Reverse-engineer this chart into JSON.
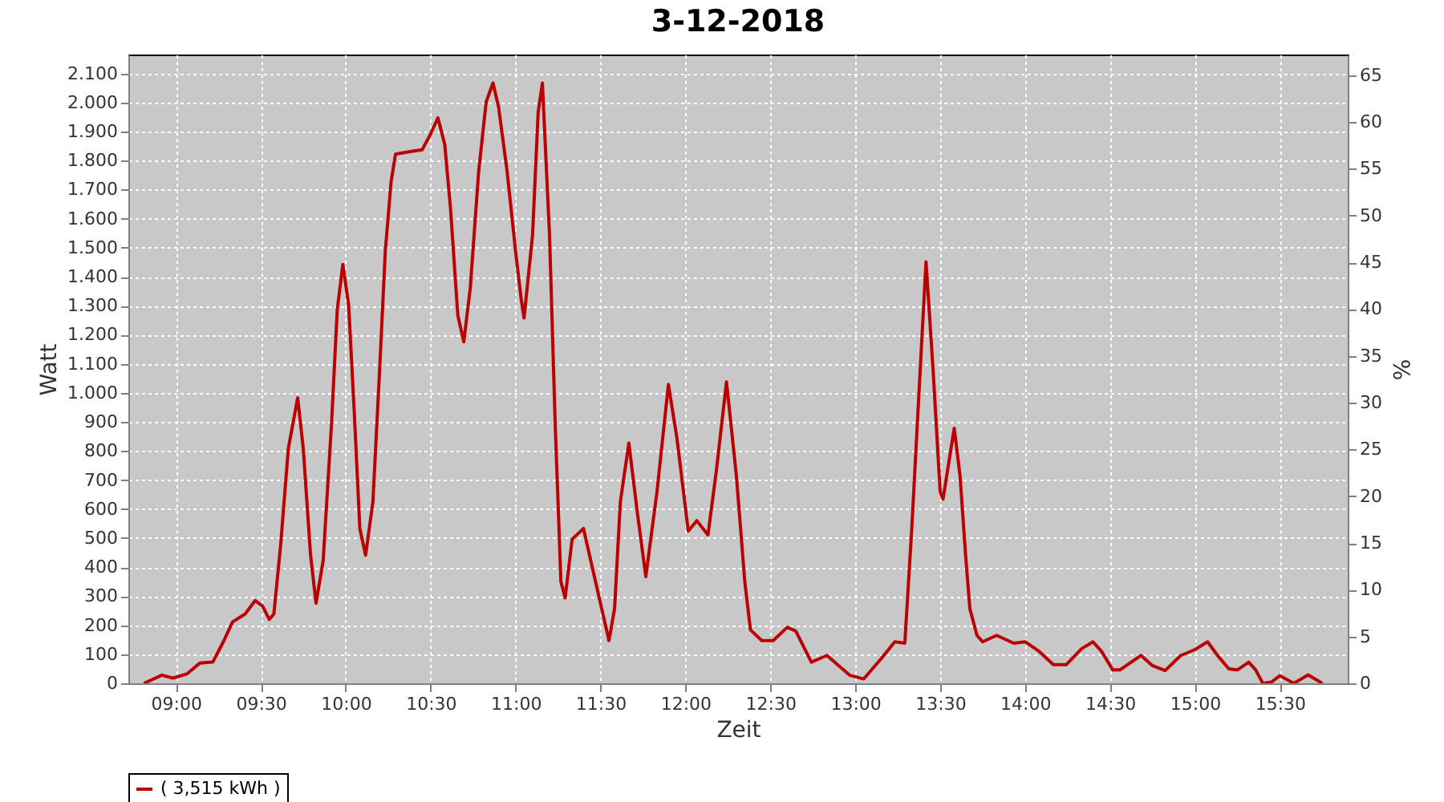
{
  "chart_data": {
    "type": "line",
    "title": "3-12-2018",
    "xlabel": "Zeit",
    "ylabel": "Watt",
    "y2label": "%",
    "xlim": [
      8.72,
      15.9
    ],
    "xticks": [
      {
        "value": 9,
        "label": "09:00"
      },
      {
        "value": 9.5,
        "label": "09:30"
      },
      {
        "value": 10,
        "label": "10:00"
      },
      {
        "value": 10.5,
        "label": "10:30"
      },
      {
        "value": 11,
        "label": "11:00"
      },
      {
        "value": 11.5,
        "label": "11:30"
      },
      {
        "value": 12,
        "label": "12:00"
      },
      {
        "value": 12.5,
        "label": "12:30"
      },
      {
        "value": 13,
        "label": "13:00"
      },
      {
        "value": 13.5,
        "label": "13:30"
      },
      {
        "value": 14,
        "label": "14:00"
      },
      {
        "value": 14.5,
        "label": "14:30"
      },
      {
        "value": 15,
        "label": "15:00"
      },
      {
        "value": 15.5,
        "label": "15:30"
      }
    ],
    "ylim": [
      0,
      2165
    ],
    "yticks": [
      0,
      100,
      200,
      300,
      400,
      500,
      600,
      700,
      800,
      900,
      {
        "value": 1000,
        "label": "1.000"
      },
      {
        "value": 1100,
        "label": "1.100"
      },
      {
        "value": 1200,
        "label": "1.200"
      },
      {
        "value": 1300,
        "label": "1.300"
      },
      {
        "value": 1400,
        "label": "1.400"
      },
      {
        "value": 1500,
        "label": "1.500"
      },
      {
        "value": 1600,
        "label": "1.600"
      },
      {
        "value": 1700,
        "label": "1.700"
      },
      {
        "value": 1800,
        "label": "1.800"
      },
      {
        "value": 1900,
        "label": "1.900"
      },
      {
        "value": 2000,
        "label": "2.000"
      },
      {
        "value": 2100,
        "label": "2.100"
      }
    ],
    "y2lim": [
      0,
      67.2
    ],
    "y2ticks": [
      0,
      5,
      10,
      15,
      20,
      25,
      30,
      35,
      40,
      45,
      50,
      55,
      60,
      65
    ],
    "grid": true,
    "legend": "bottom",
    "series": [
      {
        "name": "( 3,515 kWh )",
        "color": "#bb0000",
        "x": [
          8.812,
          8.917,
          8.983,
          9.067,
          9.142,
          9.217,
          9.283,
          9.333,
          9.408,
          9.467,
          9.51,
          9.55,
          9.577,
          9.617,
          9.662,
          9.717,
          9.75,
          9.793,
          9.825,
          9.867,
          9.917,
          9.95,
          9.983,
          10.017,
          10.05,
          10.083,
          10.117,
          10.16,
          10.2,
          10.233,
          10.267,
          10.293,
          10.35,
          10.45,
          10.5,
          10.543,
          10.583,
          10.617,
          10.66,
          10.695,
          10.733,
          10.783,
          10.827,
          10.867,
          10.9,
          10.95,
          11.0,
          11.033,
          11.05,
          11.1,
          11.133,
          11.158,
          11.2,
          11.233,
          11.267,
          11.292,
          11.333,
          11.4,
          11.45,
          11.55,
          11.583,
          11.617,
          11.667,
          11.717,
          11.767,
          11.833,
          11.9,
          11.95,
          12.017,
          12.067,
          12.133,
          12.183,
          12.242,
          12.3,
          12.35,
          12.383,
          12.45,
          12.517,
          12.6,
          12.65,
          12.742,
          12.833,
          12.967,
          13.05,
          13.15,
          13.233,
          13.292,
          13.333,
          13.383,
          13.417,
          13.458,
          13.5,
          13.517,
          13.583,
          13.617,
          13.65,
          13.675,
          13.717,
          13.75,
          13.833,
          13.933,
          14.0,
          14.083,
          14.167,
          14.242,
          14.333,
          14.4,
          14.45,
          14.517,
          14.558,
          14.683,
          14.75,
          14.825,
          14.917,
          15.0,
          15.075,
          15.133,
          15.2,
          15.25,
          15.317,
          15.358,
          15.4,
          15.45,
          15.5,
          15.583,
          15.667,
          15.75
        ],
        "values": [
          0,
          28,
          18,
          33,
          70,
          73,
          147,
          211,
          239,
          285,
          266,
          220,
          239,
          478,
          808,
          983,
          808,
          441,
          276,
          422,
          900,
          1286,
          1442,
          1304,
          937,
          533,
          441,
          625,
          1084,
          1488,
          1727,
          1822,
          1828,
          1837,
          1892,
          1947,
          1855,
          1635,
          1267,
          1176,
          1359,
          1764,
          2002,
          2067,
          1984,
          1764,
          1488,
          1323,
          1258,
          1543,
          1966,
          2067,
          1543,
          900,
          350,
          294,
          496,
          533,
          404,
          147,
          257,
          625,
          827,
          588,
          367,
          661,
          1029,
          845,
          524,
          560,
          511,
          735,
          1038,
          716,
          349,
          184,
          147,
          147,
          193,
          180,
          73,
          96,
          28,
          15,
          83,
          143,
          138,
          533,
          1084,
          1451,
          1084,
          661,
          634,
          878,
          716,
          441,
          257,
          165,
          143,
          165,
          138,
          143,
          110,
          64,
          64,
          119,
          143,
          110,
          46,
          46,
          96,
          61,
          44,
          96,
          116,
          143,
          96,
          50,
          46,
          73,
          46,
          0,
          4,
          26,
          0,
          29,
          0
        ]
      }
    ]
  }
}
